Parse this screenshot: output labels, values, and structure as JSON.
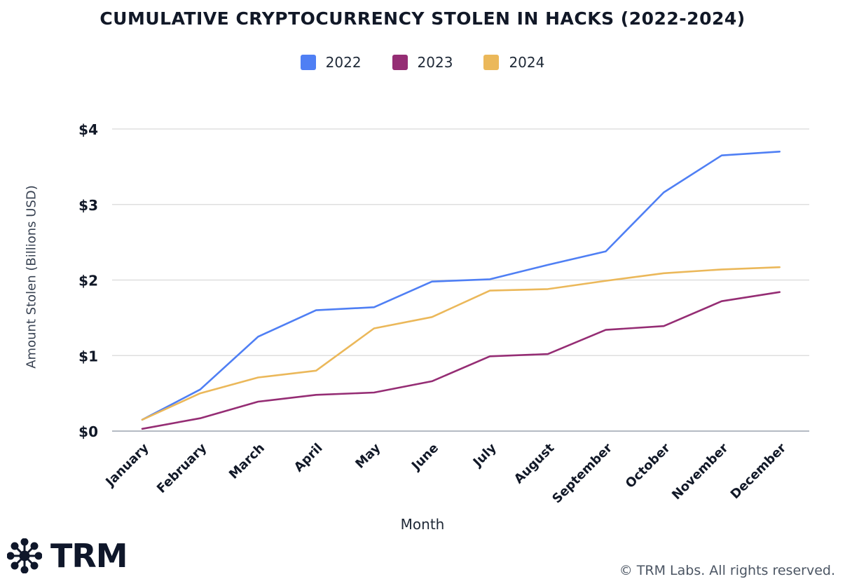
{
  "page": {
    "copyright": "© TRM Labs. All rights reserved.",
    "logo_text": "TRM",
    "logo_icon": "network-star-icon"
  },
  "chart_data": {
    "type": "line",
    "title": "CUMULATIVE CRYPTOCURRENCY STOLEN IN HACKS (2022-2024)",
    "xlabel": "Month",
    "ylabel": "Amount Stolen (Billions USD)",
    "categories": [
      "January",
      "February",
      "March",
      "April",
      "May",
      "June",
      "July",
      "August",
      "September",
      "October",
      "November",
      "December"
    ],
    "ylim": [
      0,
      4
    ],
    "yticks": [
      0,
      1,
      2,
      3,
      4
    ],
    "ytick_labels": [
      "$0",
      "$1",
      "$2",
      "$3",
      "$4"
    ],
    "grid": true,
    "legend_position": "top-center",
    "series": [
      {
        "name": "2022",
        "color": "#4f7ff4",
        "values": [
          0.15,
          0.55,
          1.25,
          1.6,
          1.64,
          1.98,
          2.01,
          2.2,
          2.38,
          3.16,
          3.65,
          3.7
        ]
      },
      {
        "name": "2023",
        "color": "#952d74",
        "values": [
          0.03,
          0.17,
          0.39,
          0.48,
          0.51,
          0.66,
          0.99,
          1.02,
          1.34,
          1.39,
          1.72,
          1.84
        ]
      },
      {
        "name": "2024",
        "color": "#ebb85a",
        "values": [
          0.15,
          0.5,
          0.71,
          0.8,
          1.36,
          1.51,
          1.86,
          1.88,
          1.99,
          2.09,
          2.14,
          2.17
        ]
      }
    ]
  }
}
